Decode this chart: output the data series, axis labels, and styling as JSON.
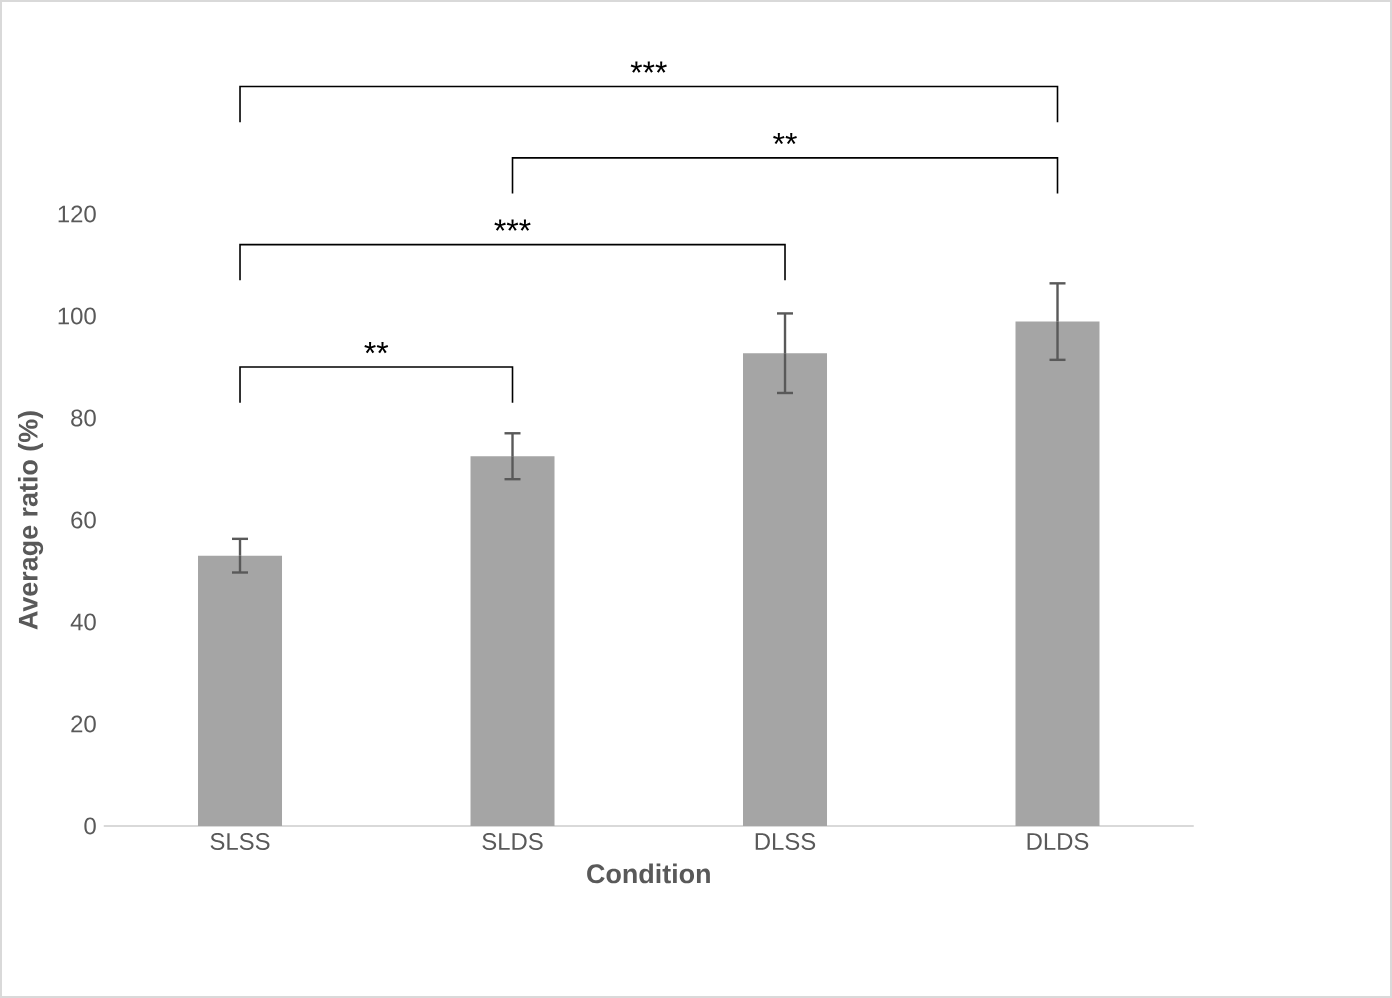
{
  "chart_data": {
    "type": "bar",
    "xlabel": "Condition",
    "ylabel": "Average ratio (%)",
    "categories": [
      "SLSS",
      "SLDS",
      "DLSS",
      "DLDS"
    ],
    "values": [
      53,
      72.5,
      92.7,
      98.9
    ],
    "errors": [
      3.3,
      4.5,
      7.8,
      7.5
    ],
    "color": "#a5a5a5",
    "ylim": [
      0,
      120
    ],
    "yticks": [
      0,
      20,
      40,
      60,
      80,
      100,
      120
    ],
    "grid": false,
    "legend": false,
    "annotations": [
      "**",
      "***",
      "**",
      "***"
    ]
  }
}
